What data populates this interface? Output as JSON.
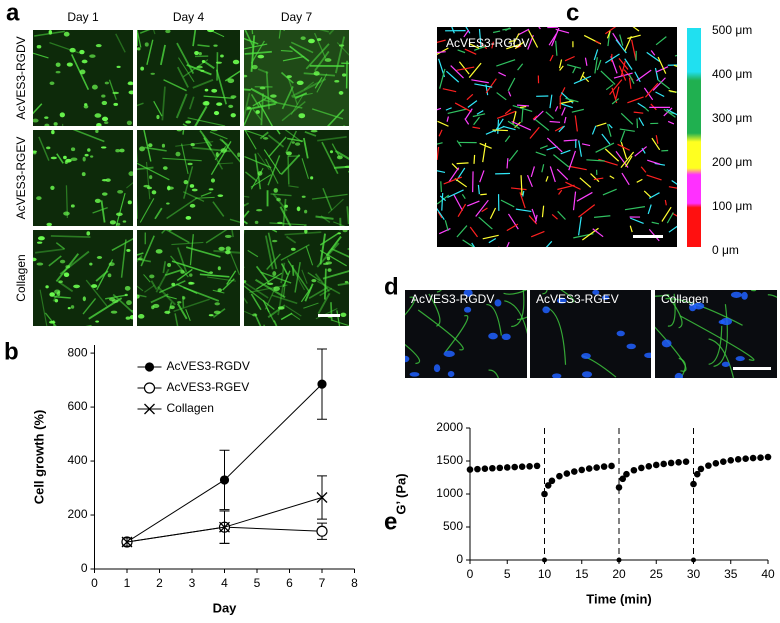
{
  "panel_a": {
    "label": "a",
    "columns": [
      "Day 1",
      "Day 4",
      "Day 7"
    ],
    "rows": [
      "AcVES3-RGDV",
      "AcVES3-RGEV",
      "Collagen"
    ]
  },
  "panel_c": {
    "label": "c",
    "title": "AcVES3-RGDV",
    "colorbar_labels": [
      "500 μm",
      "400 μm",
      "300 μm",
      "200 μm",
      "100 μm",
      "0 μm"
    ]
  },
  "panel_d": {
    "label": "d",
    "images": [
      "AcVES3-RGDV",
      "AcVES3-RGEV",
      "Collagen"
    ]
  },
  "chart_data": [
    {
      "type": "line",
      "label": "b",
      "x_label": "Day",
      "y_label": "Cell growth (%)",
      "x": [
        1,
        4,
        7
      ],
      "series": [
        {
          "name": "AcVES3-RGDV",
          "color": "#000000",
          "marker": "circle",
          "values": [
            100,
            330,
            685
          ],
          "errors": [
            15,
            110,
            130
          ]
        },
        {
          "name": "AcVES3-RGEV",
          "color": "#000000",
          "marker": "open-circle",
          "values": [
            100,
            155,
            140
          ],
          "errors": [
            15,
            60,
            30
          ]
        },
        {
          "name": "Collagen",
          "color": "#000000",
          "marker": "x",
          "values": [
            100,
            155,
            265
          ],
          "errors": [
            15,
            60,
            80
          ]
        }
      ],
      "xlim": [
        0,
        8
      ],
      "xticks": [
        0,
        1,
        2,
        3,
        4,
        5,
        6,
        7,
        8
      ],
      "ylim": [
        0,
        830
      ],
      "yticks": [
        0,
        200,
        400,
        600,
        800
      ],
      "legend": "top-left"
    },
    {
      "type": "scatter",
      "label": "e",
      "x_label": "Time (min)",
      "y_label": "G’ (Pa)",
      "color": "#000000",
      "x": [
        0,
        1,
        2,
        3,
        4,
        5,
        6,
        7,
        8,
        9,
        10,
        10.5,
        11,
        12,
        13,
        14,
        15,
        16,
        17,
        18,
        19,
        20,
        20.5,
        21,
        22,
        23,
        24,
        25,
        26,
        27,
        28,
        29,
        30,
        30.5,
        31,
        32,
        33,
        34,
        35,
        36,
        37,
        38,
        39,
        40
      ],
      "values": [
        1370,
        1377,
        1383,
        1390,
        1396,
        1402,
        1408,
        1414,
        1420,
        1426,
        1000,
        1130,
        1200,
        1270,
        1310,
        1340,
        1365,
        1385,
        1400,
        1415,
        1425,
        1100,
        1230,
        1300,
        1360,
        1395,
        1420,
        1440,
        1455,
        1470,
        1480,
        1490,
        1150,
        1300,
        1380,
        1430,
        1465,
        1490,
        1510,
        1525,
        1535,
        1545,
        1550,
        1560
      ],
      "vlines": [
        10,
        20,
        30
      ],
      "xlim": [
        0,
        40
      ],
      "xticks": [
        0,
        5,
        10,
        15,
        20,
        25,
        30,
        35,
        40
      ],
      "ylim": [
        0,
        2000
      ],
      "yticks": [
        0,
        500,
        1000,
        1500,
        2000
      ]
    }
  ]
}
